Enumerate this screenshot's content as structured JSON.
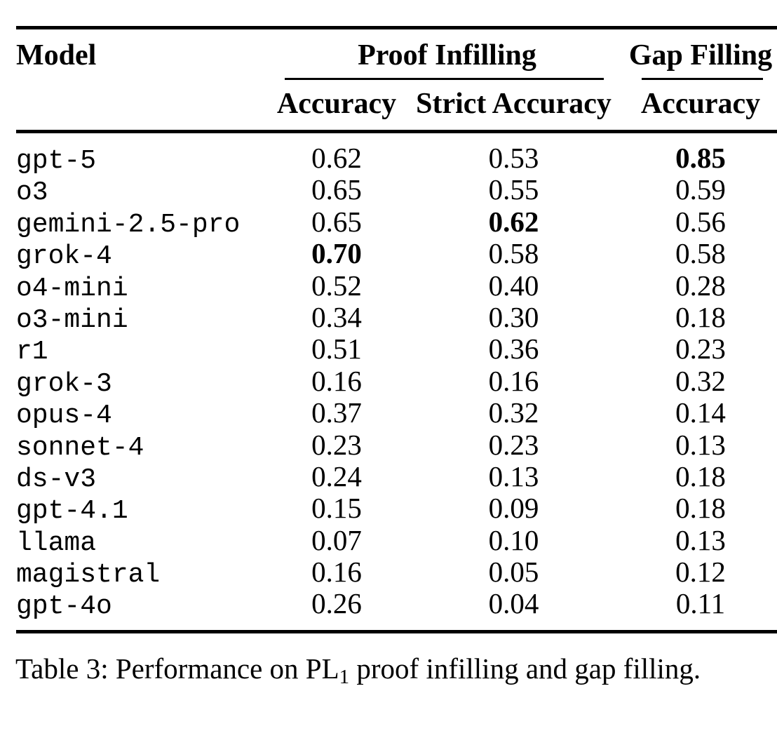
{
  "table": {
    "header": {
      "model": "Model",
      "group_proof": "Proof Infilling",
      "group_gap": "Gap Filling",
      "sub_proof_accuracy": "Accuracy",
      "sub_proof_strict": "Strict Accuracy",
      "sub_gap_accuracy": "Accuracy"
    },
    "rows": [
      {
        "model": "gpt-5",
        "values": [
          {
            "v": "0.62",
            "b": false
          },
          {
            "v": "0.53",
            "b": false
          },
          {
            "v": "0.85",
            "b": true
          }
        ]
      },
      {
        "model": "o3",
        "values": [
          {
            "v": "0.65",
            "b": false
          },
          {
            "v": "0.55",
            "b": false
          },
          {
            "v": "0.59",
            "b": false
          }
        ]
      },
      {
        "model": "gemini-2.5-pro",
        "values": [
          {
            "v": "0.65",
            "b": false
          },
          {
            "v": "0.62",
            "b": true
          },
          {
            "v": "0.56",
            "b": false
          }
        ]
      },
      {
        "model": "grok-4",
        "values": [
          {
            "v": "0.70",
            "b": true
          },
          {
            "v": "0.58",
            "b": false
          },
          {
            "v": "0.58",
            "b": false
          }
        ]
      },
      {
        "model": "o4-mini",
        "values": [
          {
            "v": "0.52",
            "b": false
          },
          {
            "v": "0.40",
            "b": false
          },
          {
            "v": "0.28",
            "b": false
          }
        ]
      },
      {
        "model": "o3-mini",
        "values": [
          {
            "v": "0.34",
            "b": false
          },
          {
            "v": "0.30",
            "b": false
          },
          {
            "v": "0.18",
            "b": false
          }
        ]
      },
      {
        "model": "r1",
        "values": [
          {
            "v": "0.51",
            "b": false
          },
          {
            "v": "0.36",
            "b": false
          },
          {
            "v": "0.23",
            "b": false
          }
        ]
      },
      {
        "model": "grok-3",
        "values": [
          {
            "v": "0.16",
            "b": false
          },
          {
            "v": "0.16",
            "b": false
          },
          {
            "v": "0.32",
            "b": false
          }
        ]
      },
      {
        "model": "opus-4",
        "values": [
          {
            "v": "0.37",
            "b": false
          },
          {
            "v": "0.32",
            "b": false
          },
          {
            "v": "0.14",
            "b": false
          }
        ]
      },
      {
        "model": "sonnet-4",
        "values": [
          {
            "v": "0.23",
            "b": false
          },
          {
            "v": "0.23",
            "b": false
          },
          {
            "v": "0.13",
            "b": false
          }
        ]
      },
      {
        "model": "ds-v3",
        "values": [
          {
            "v": "0.24",
            "b": false
          },
          {
            "v": "0.13",
            "b": false
          },
          {
            "v": "0.18",
            "b": false
          }
        ]
      },
      {
        "model": "gpt-4.1",
        "values": [
          {
            "v": "0.15",
            "b": false
          },
          {
            "v": "0.09",
            "b": false
          },
          {
            "v": "0.18",
            "b": false
          }
        ]
      },
      {
        "model": "llama",
        "values": [
          {
            "v": "0.07",
            "b": false
          },
          {
            "v": "0.10",
            "b": false
          },
          {
            "v": "0.13",
            "b": false
          }
        ]
      },
      {
        "model": "magistral",
        "values": [
          {
            "v": "0.16",
            "b": false
          },
          {
            "v": "0.05",
            "b": false
          },
          {
            "v": "0.12",
            "b": false
          }
        ]
      },
      {
        "model": "gpt-4o",
        "values": [
          {
            "v": "0.26",
            "b": false
          },
          {
            "v": "0.04",
            "b": false
          },
          {
            "v": "0.11",
            "b": false
          }
        ]
      }
    ]
  },
  "caption": {
    "part1": "Table 3: Performance on PL",
    "sub": "1",
    "part2": " proof infilling and gap filling."
  },
  "colors": {
    "text": "#000000",
    "background": "#ffffff",
    "rule": "#000000"
  }
}
